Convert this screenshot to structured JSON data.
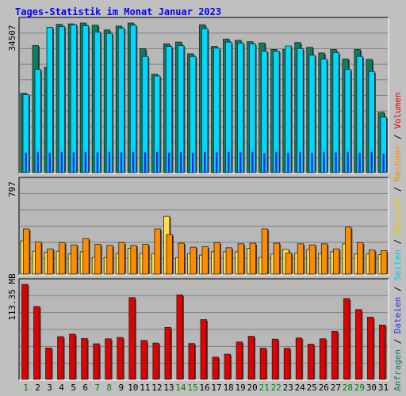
{
  "title": "Tages-Statistik im Monat Januar 2023",
  "colors": {
    "background": "#C0C0C0",
    "plot_bg": "#B8B8B8",
    "title": "#0000FF",
    "anfragen": "#0B7F5F",
    "dateien": "#00D8FF",
    "seiten": "#2C2CE8",
    "besuche": "#FFE040",
    "rechner": "#FF8C00",
    "volumen": "#E00000",
    "weekend_label": "#008000",
    "weekday_label": "#000000"
  },
  "chart_data": [
    {
      "type": "bar",
      "panel": "top",
      "y_label": "34507",
      "ylim": [
        0,
        34507
      ],
      "series": [
        {
          "name": "Anfragen",
          "color": "#0B7F5F",
          "values": [
            18300,
            29300,
            24300,
            34200,
            34300,
            34500,
            34000,
            32900,
            33800,
            34507,
            28600,
            22700,
            29700,
            30100,
            27400,
            34100,
            29100,
            30800,
            30500,
            30200,
            29900,
            28400,
            28400,
            30000,
            28900,
            27600,
            28400,
            26200,
            28400,
            26100,
            13900
          ]
        },
        {
          "name": "Dateien",
          "color": "#00D8FF",
          "values": [
            18000,
            23800,
            33500,
            33700,
            34100,
            33900,
            32400,
            32100,
            33300,
            34000,
            26800,
            22300,
            29100,
            29300,
            26800,
            33200,
            28700,
            30100,
            29900,
            29700,
            28000,
            28000,
            29200,
            28600,
            27100,
            26200,
            27700,
            23800,
            26800,
            23300,
            12800
          ]
        },
        {
          "name": "Seiten",
          "color": "#2C2CE8",
          "values": [
            4600,
            4800,
            4600,
            4800,
            4700,
            4800,
            4700,
            4800,
            4700,
            4800,
            4700,
            4800,
            4600,
            4700,
            4600,
            4800,
            4700,
            4800,
            4700,
            4800,
            4500,
            4800,
            4600,
            4800,
            4600,
            4800,
            4700,
            4800,
            4600,
            4800,
            4400
          ]
        }
      ]
    },
    {
      "type": "bar",
      "panel": "middle",
      "y_label": "797",
      "ylim": [
        0,
        797
      ],
      "series": [
        {
          "name": "Besuche",
          "color": "#FFE040",
          "values": [
            290,
            200,
            190,
            200,
            175,
            195,
            145,
            145,
            180,
            225,
            180,
            180,
            505,
            145,
            180,
            165,
            195,
            195,
            195,
            225,
            145,
            175,
            215,
            185,
            215,
            180,
            195,
            265,
            175,
            175,
            170
          ]
        },
        {
          "name": "Rechner",
          "color": "#FF8C00",
          "values": [
            395,
            280,
            220,
            275,
            255,
            310,
            260,
            250,
            275,
            250,
            260,
            395,
            345,
            270,
            235,
            240,
            275,
            230,
            265,
            270,
            395,
            270,
            185,
            265,
            255,
            265,
            220,
            410,
            275,
            210,
            205
          ]
        }
      ]
    },
    {
      "type": "bar",
      "panel": "bottom",
      "y_label": "113.35 MB",
      "ylim": [
        0,
        113.35
      ],
      "series": [
        {
          "name": "Volumen",
          "color": "#E00000",
          "values": [
            113.35,
            86.9,
            37.5,
            51.0,
            54.0,
            48.8,
            42.5,
            48.4,
            50.0,
            97.5,
            46.4,
            43.3,
            62.0,
            100.8,
            42.8,
            71.3,
            26.5,
            30.1,
            44.6,
            51.4,
            37.2,
            48.0,
            37.1,
            49.4,
            42.0,
            48.4,
            57.2,
            96.4,
            83.3,
            74.2,
            64.8
          ]
        }
      ]
    }
  ],
  "days": [
    "1",
    "2",
    "3",
    "4",
    "5",
    "6",
    "7",
    "8",
    "9",
    "10",
    "11",
    "12",
    "13",
    "14",
    "15",
    "16",
    "17",
    "18",
    "19",
    "20",
    "21",
    "22",
    "23",
    "24",
    "25",
    "26",
    "27",
    "28",
    "29",
    "30",
    "31"
  ],
  "weekend_days": [
    1,
    7,
    8,
    14,
    15,
    21,
    22,
    28,
    29
  ],
  "right_legend": {
    "top": [
      {
        "text": "Anfragen",
        "color": "#0B7F5F"
      },
      {
        "text": " / ",
        "color": "#000000"
      },
      {
        "text": "Dateien",
        "color": "#2C2CE8"
      },
      {
        "text": " / ",
        "color": "#000000"
      },
      {
        "text": "Seiten",
        "color": "#00C8F0"
      },
      {
        "text": " / ",
        "color": "#000000"
      },
      {
        "text": "Besuche",
        "color": "#E8C800"
      },
      {
        "text": " / ",
        "color": "#000000"
      },
      {
        "text": "Rechner",
        "color": "#FF8C00"
      },
      {
        "text": " / ",
        "color": "#000000"
      },
      {
        "text": "Volumen",
        "color": "#E00000"
      }
    ]
  }
}
